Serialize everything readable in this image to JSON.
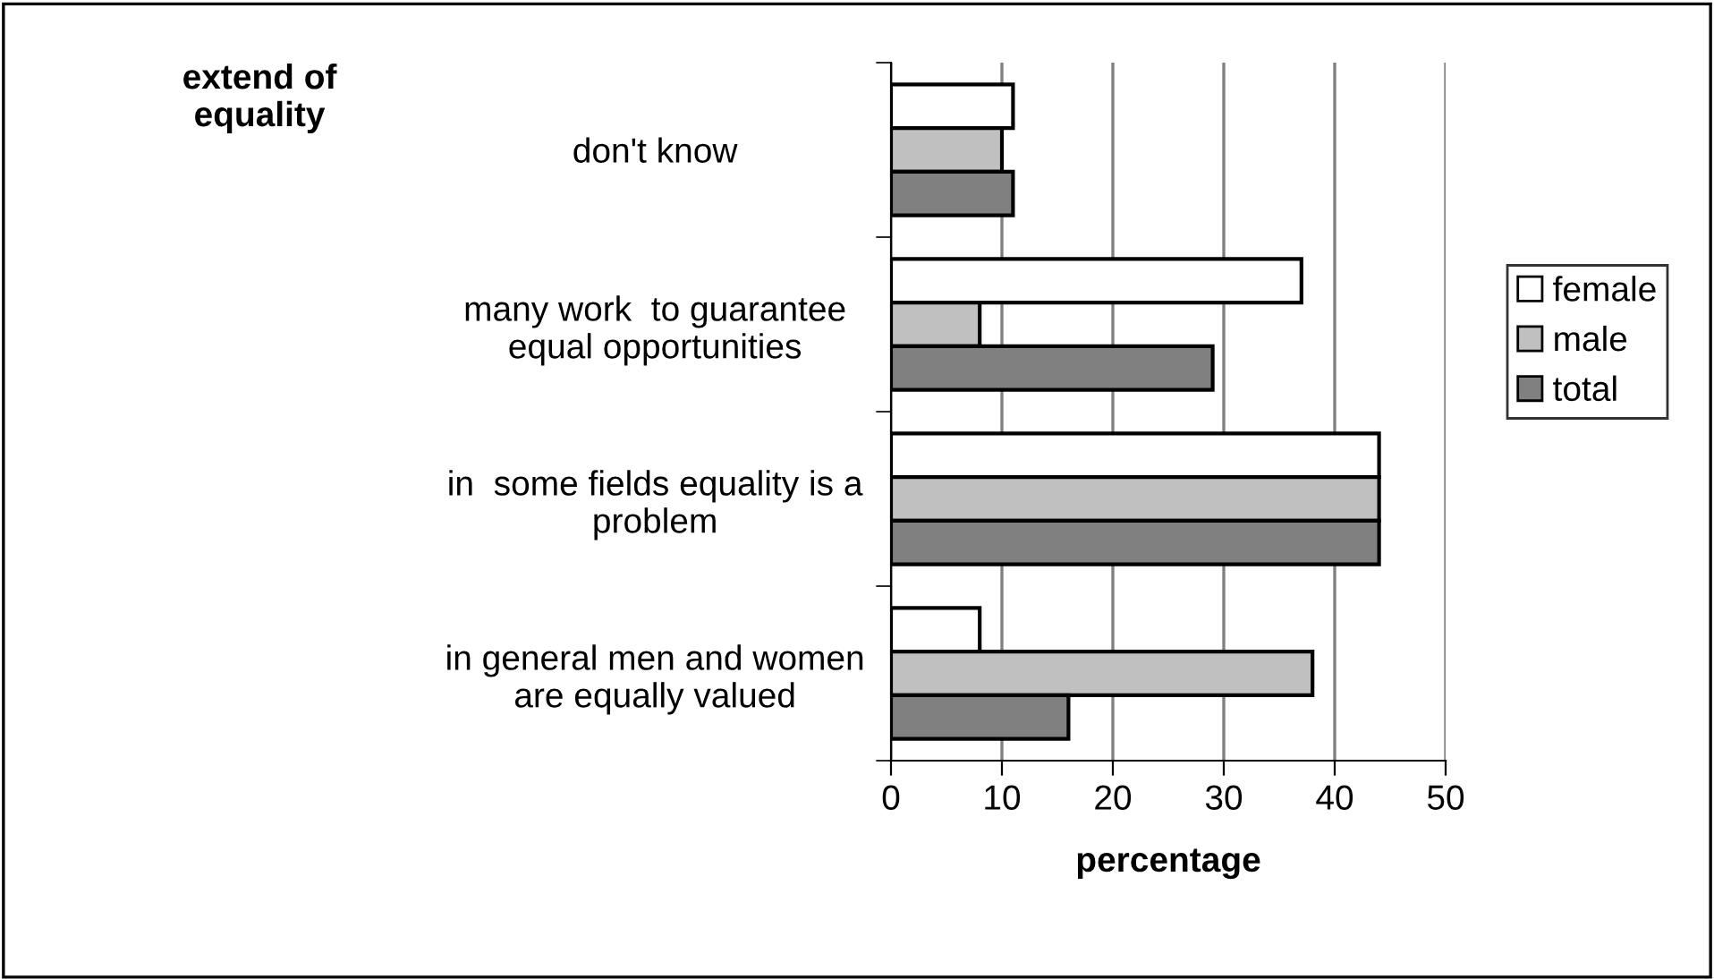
{
  "chart_data": {
    "type": "bar",
    "orientation": "horizontal",
    "ylabel": "extend of\nequality",
    "xlabel": "percentage",
    "categories": [
      "don't know",
      "many work  to guarantee\nequal opportunities",
      "in  some fields equality is a\nproblem",
      "in general men and women\nare equally valued"
    ],
    "series": [
      {
        "name": "female",
        "color": "#ffffff",
        "values": [
          11,
          37,
          44,
          8
        ]
      },
      {
        "name": "male",
        "color": "#c0c0c0",
        "values": [
          10,
          8,
          44,
          38
        ]
      },
      {
        "name": "total",
        "color": "#808080",
        "values": [
          11,
          29,
          44,
          16
        ]
      }
    ],
    "xlim": [
      0,
      50
    ],
    "xticks": [
      0,
      10,
      20,
      30,
      40,
      50
    ],
    "grid": "x",
    "legend": "right"
  }
}
